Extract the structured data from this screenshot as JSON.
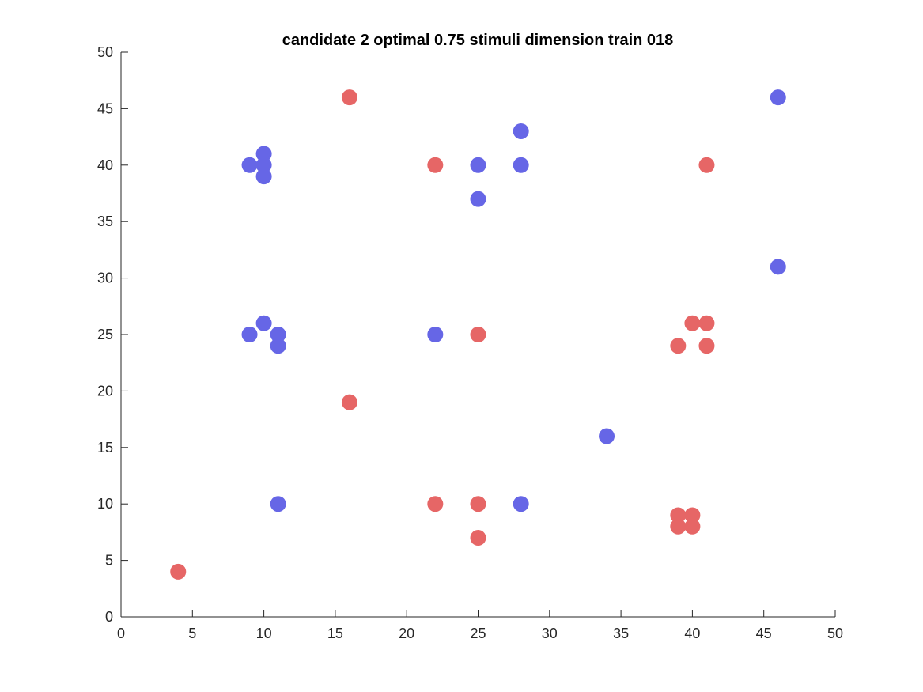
{
  "chart_data": {
    "type": "scatter",
    "title": "candidate 2 optimal 0.75 stimuli dimension train 018",
    "xlabel": "",
    "ylabel": "",
    "xlim": [
      0,
      50
    ],
    "ylim": [
      0,
      50
    ],
    "xticks": [
      0,
      5,
      10,
      15,
      20,
      25,
      30,
      35,
      40,
      45,
      50
    ],
    "yticks": [
      0,
      5,
      10,
      15,
      20,
      25,
      30,
      35,
      40,
      45,
      50
    ],
    "grid": false,
    "legend": "none",
    "series": [
      {
        "color": "#6666e6",
        "points": [
          [
            9,
            40
          ],
          [
            10,
            41
          ],
          [
            10,
            40
          ],
          [
            10,
            39
          ],
          [
            25,
            40
          ],
          [
            25,
            37
          ],
          [
            28,
            43
          ],
          [
            28,
            40
          ],
          [
            46,
            46
          ],
          [
            46,
            31
          ],
          [
            9,
            25
          ],
          [
            10,
            26
          ],
          [
            11,
            25
          ],
          [
            11,
            24
          ],
          [
            22,
            25
          ],
          [
            34,
            16
          ],
          [
            11,
            10
          ],
          [
            28,
            10
          ]
        ]
      },
      {
        "color": "#e66666",
        "points": [
          [
            16,
            46
          ],
          [
            22,
            40
          ],
          [
            41,
            40
          ],
          [
            25,
            25
          ],
          [
            39,
            24
          ],
          [
            40,
            26
          ],
          [
            41,
            26
          ],
          [
            41,
            24
          ],
          [
            16,
            19
          ],
          [
            22,
            10
          ],
          [
            25,
            10
          ],
          [
            25,
            7
          ],
          [
            39,
            9
          ],
          [
            40,
            9
          ],
          [
            39,
            8
          ],
          [
            40,
            8
          ],
          [
            4,
            4
          ]
        ]
      }
    ]
  }
}
